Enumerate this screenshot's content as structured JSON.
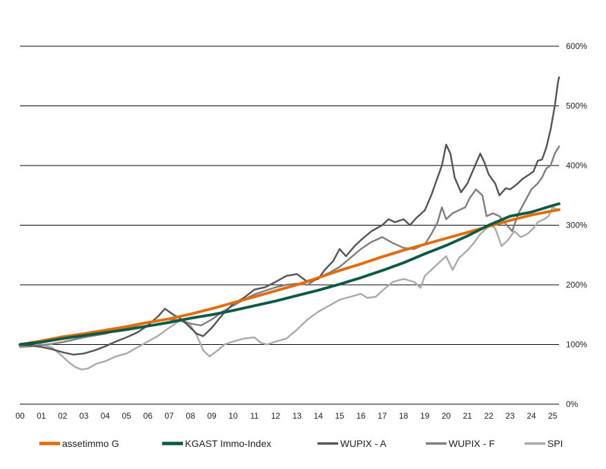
{
  "chart_data": {
    "type": "line",
    "title": "",
    "xlabel": "",
    "ylabel": "",
    "x_range": [
      0,
      25.3
    ],
    "ylim": [
      0,
      600
    ],
    "y_ticks": [
      0,
      100,
      200,
      300,
      400,
      500,
      600
    ],
    "y_tick_labels": [
      "0%",
      "100%",
      "200%",
      "300%",
      "400%",
      "500%",
      "600%"
    ],
    "x_tick_labels": [
      "00",
      "01",
      "02",
      "03",
      "04",
      "05",
      "06",
      "07",
      "08",
      "09",
      "10",
      "11",
      "12",
      "13",
      "14",
      "15",
      "16",
      "17",
      "18",
      "19",
      "20",
      "21",
      "22",
      "23",
      "24",
      "25"
    ],
    "grid": "horizontal",
    "legend_position": "bottom",
    "series": [
      {
        "name": "assetimmo G",
        "color": "#E46C0A",
        "width": 4,
        "points": [
          [
            0,
            100
          ],
          [
            1,
            106
          ],
          [
            2,
            113
          ],
          [
            3,
            118
          ],
          [
            4,
            124
          ],
          [
            5,
            130
          ],
          [
            6,
            137
          ],
          [
            7,
            143
          ],
          [
            8,
            151
          ],
          [
            9,
            160
          ],
          [
            10,
            170
          ],
          [
            11,
            180
          ],
          [
            12,
            190
          ],
          [
            13,
            200
          ],
          [
            14,
            212
          ],
          [
            15,
            224
          ],
          [
            16,
            235
          ],
          [
            17,
            247
          ],
          [
            18,
            258
          ],
          [
            19,
            268
          ],
          [
            20,
            278
          ],
          [
            21,
            288
          ],
          [
            22,
            298
          ],
          [
            23,
            308
          ],
          [
            24,
            317
          ],
          [
            25,
            324
          ],
          [
            25.3,
            326
          ]
        ]
      },
      {
        "name": "KGAST Immo-Index",
        "color": "#0B5B45",
        "width": 4,
        "points": [
          [
            0,
            100
          ],
          [
            1,
            104
          ],
          [
            2,
            110
          ],
          [
            3,
            115
          ],
          [
            4,
            120
          ],
          [
            5,
            125
          ],
          [
            6,
            131
          ],
          [
            7,
            137
          ],
          [
            8,
            144
          ],
          [
            9,
            150
          ],
          [
            10,
            157
          ],
          [
            11,
            165
          ],
          [
            12,
            173
          ],
          [
            13,
            182
          ],
          [
            14,
            191
          ],
          [
            15,
            201
          ],
          [
            16,
            212
          ],
          [
            17,
            224
          ],
          [
            18,
            237
          ],
          [
            19,
            252
          ],
          [
            20,
            266
          ],
          [
            21,
            282
          ],
          [
            22,
            300
          ],
          [
            23,
            315
          ],
          [
            24,
            322
          ],
          [
            25,
            333
          ],
          [
            25.3,
            336
          ]
        ]
      },
      {
        "name": "WUPIX - A",
        "color": "#555555",
        "width": 2.5,
        "points": [
          [
            0,
            100
          ],
          [
            0.5,
            98
          ],
          [
            1,
            96
          ],
          [
            1.5,
            92
          ],
          [
            2,
            87
          ],
          [
            2.5,
            83
          ],
          [
            3,
            85
          ],
          [
            3.5,
            90
          ],
          [
            4,
            97
          ],
          [
            4.5,
            105
          ],
          [
            5,
            112
          ],
          [
            5.5,
            120
          ],
          [
            6,
            132
          ],
          [
            6.5,
            148
          ],
          [
            6.8,
            160
          ],
          [
            7.2,
            150
          ],
          [
            7.6,
            142
          ],
          [
            8,
            128
          ],
          [
            8.3,
            118
          ],
          [
            8.6,
            114
          ],
          [
            9,
            128
          ],
          [
            9.5,
            150
          ],
          [
            10,
            168
          ],
          [
            10.5,
            178
          ],
          [
            11,
            192
          ],
          [
            11.5,
            196
          ],
          [
            12,
            205
          ],
          [
            12.5,
            215
          ],
          [
            13,
            218
          ],
          [
            13.5,
            205
          ],
          [
            14,
            210
          ],
          [
            14.3,
            225
          ],
          [
            14.7,
            240
          ],
          [
            15,
            260
          ],
          [
            15.3,
            248
          ],
          [
            15.7,
            265
          ],
          [
            16,
            275
          ],
          [
            16.5,
            290
          ],
          [
            17,
            300
          ],
          [
            17.3,
            310
          ],
          [
            17.6,
            305
          ],
          [
            18,
            310
          ],
          [
            18.3,
            300
          ],
          [
            18.6,
            312
          ],
          [
            19,
            325
          ],
          [
            19.3,
            350
          ],
          [
            19.6,
            380
          ],
          [
            19.8,
            400
          ],
          [
            20,
            435
          ],
          [
            20.2,
            420
          ],
          [
            20.4,
            380
          ],
          [
            20.7,
            355
          ],
          [
            21,
            370
          ],
          [
            21.3,
            395
          ],
          [
            21.6,
            420
          ],
          [
            21.8,
            405
          ],
          [
            22,
            385
          ],
          [
            22.3,
            370
          ],
          [
            22.5,
            350
          ],
          [
            22.8,
            362
          ],
          [
            23,
            360
          ],
          [
            23.3,
            368
          ],
          [
            23.6,
            378
          ],
          [
            23.9,
            385
          ],
          [
            24.1,
            390
          ],
          [
            24.3,
            408
          ],
          [
            24.5,
            410
          ],
          [
            24.7,
            430
          ],
          [
            24.9,
            460
          ],
          [
            25.1,
            500
          ],
          [
            25.25,
            540
          ],
          [
            25.3,
            548
          ]
        ]
      },
      {
        "name": "WUPIX - F",
        "color": "#7F7F7F",
        "width": 2.5,
        "points": [
          [
            0,
            96
          ],
          [
            0.5,
            97
          ],
          [
            1,
            99
          ],
          [
            1.5,
            101
          ],
          [
            2,
            104
          ],
          [
            2.5,
            108
          ],
          [
            3,
            112
          ],
          [
            3.5,
            115
          ],
          [
            4,
            118
          ],
          [
            4.5,
            123
          ],
          [
            5,
            127
          ],
          [
            5.5,
            132
          ],
          [
            6,
            137
          ],
          [
            6.5,
            140
          ],
          [
            7,
            142
          ],
          [
            7.5,
            141
          ],
          [
            8,
            135
          ],
          [
            8.5,
            132
          ],
          [
            9,
            142
          ],
          [
            9.5,
            155
          ],
          [
            10,
            165
          ],
          [
            10.5,
            175
          ],
          [
            11,
            184
          ],
          [
            11.5,
            190
          ],
          [
            12,
            196
          ],
          [
            12.5,
            200
          ],
          [
            13,
            202
          ],
          [
            13.5,
            200
          ],
          [
            14,
            212
          ],
          [
            14.5,
            220
          ],
          [
            15,
            230
          ],
          [
            15.5,
            245
          ],
          [
            16,
            260
          ],
          [
            16.5,
            272
          ],
          [
            17,
            280
          ],
          [
            17.5,
            270
          ],
          [
            18,
            262
          ],
          [
            18.5,
            260
          ],
          [
            19,
            268
          ],
          [
            19.3,
            285
          ],
          [
            19.6,
            305
          ],
          [
            19.8,
            330
          ],
          [
            20,
            310
          ],
          [
            20.3,
            320
          ],
          [
            20.6,
            325
          ],
          [
            20.9,
            330
          ],
          [
            21.1,
            345
          ],
          [
            21.4,
            360
          ],
          [
            21.7,
            350
          ],
          [
            21.9,
            315
          ],
          [
            22.2,
            320
          ],
          [
            22.5,
            315
          ],
          [
            22.8,
            302
          ],
          [
            23.1,
            290
          ],
          [
            23.4,
            320
          ],
          [
            23.7,
            340
          ],
          [
            24,
            360
          ],
          [
            24.3,
            370
          ],
          [
            24.5,
            380
          ],
          [
            24.7,
            395
          ],
          [
            24.9,
            400
          ],
          [
            25.1,
            420
          ],
          [
            25.3,
            432
          ]
        ]
      },
      {
        "name": "SPI",
        "color": "#AAAAAA",
        "width": 2.5,
        "points": [
          [
            0,
            98
          ],
          [
            0.5,
            102
          ],
          [
            1,
            100
          ],
          [
            1.5,
            95
          ],
          [
            2,
            80
          ],
          [
            2.3,
            70
          ],
          [
            2.6,
            62
          ],
          [
            2.9,
            58
          ],
          [
            3.2,
            60
          ],
          [
            3.6,
            68
          ],
          [
            4,
            72
          ],
          [
            4.5,
            80
          ],
          [
            5,
            85
          ],
          [
            5.5,
            95
          ],
          [
            6,
            105
          ],
          [
            6.5,
            115
          ],
          [
            7,
            128
          ],
          [
            7.5,
            140
          ],
          [
            8,
            132
          ],
          [
            8.3,
            115
          ],
          [
            8.6,
            90
          ],
          [
            8.9,
            80
          ],
          [
            9.2,
            88
          ],
          [
            9.6,
            100
          ],
          [
            10,
            105
          ],
          [
            10.5,
            110
          ],
          [
            11,
            112
          ],
          [
            11.3,
            103
          ],
          [
            11.6,
            100
          ],
          [
            12,
            105
          ],
          [
            12.5,
            110
          ],
          [
            13,
            125
          ],
          [
            13.5,
            142
          ],
          [
            14,
            155
          ],
          [
            14.5,
            165
          ],
          [
            15,
            175
          ],
          [
            15.5,
            180
          ],
          [
            16,
            185
          ],
          [
            16.3,
            178
          ],
          [
            16.7,
            180
          ],
          [
            17,
            190
          ],
          [
            17.5,
            205
          ],
          [
            18,
            210
          ],
          [
            18.5,
            205
          ],
          [
            18.8,
            195
          ],
          [
            19,
            215
          ],
          [
            19.3,
            225
          ],
          [
            19.6,
            235
          ],
          [
            20,
            248
          ],
          [
            20.3,
            225
          ],
          [
            20.6,
            245
          ],
          [
            21,
            258
          ],
          [
            21.3,
            270
          ],
          [
            21.6,
            285
          ],
          [
            21.9,
            295
          ],
          [
            22.1,
            300
          ],
          [
            22.3,
            295
          ],
          [
            22.6,
            265
          ],
          [
            22.9,
            275
          ],
          [
            23.2,
            290
          ],
          [
            23.5,
            280
          ],
          [
            23.8,
            285
          ],
          [
            24.1,
            295
          ],
          [
            24.3,
            305
          ],
          [
            24.6,
            310
          ],
          [
            24.8,
            315
          ],
          [
            25,
            330
          ],
          [
            25.3,
            325
          ]
        ]
      }
    ]
  }
}
